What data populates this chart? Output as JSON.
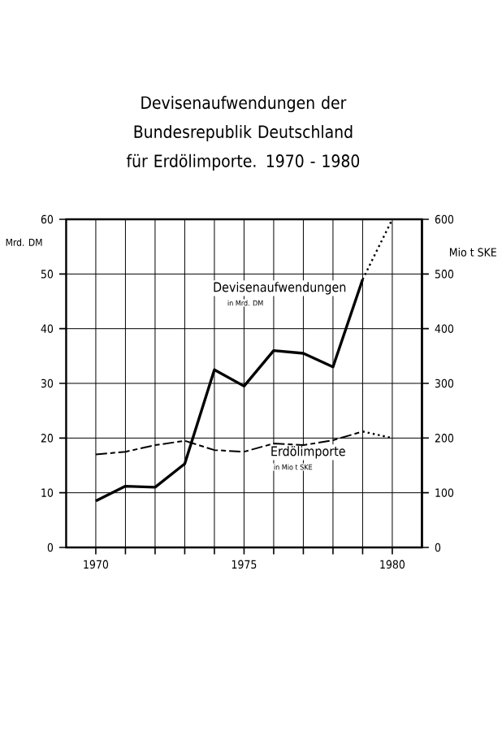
{
  "chart_data": {
    "type": "line",
    "title": "Devisenaufwendungen der Bundesrepublik Deutschland für Erdölimporte. 1970 - 1980",
    "ylabel": "Mrd. DM",
    "y2label": "Mio t SKE",
    "x": [
      1970,
      1971,
      1972,
      1973,
      1974,
      1975,
      1976,
      1977,
      1978,
      1979,
      1980
    ],
    "series": [
      {
        "name": "Devisenaufwendungen",
        "color": "#000000",
        "line_style": "solid",
        "values": [
          8.5,
          11.2,
          11,
          15.3,
          32.5,
          29.5,
          36,
          35.5,
          33,
          49,
          null
        ]
      },
      {
        "color": "#000000",
        "line_style": "dotted",
        "values": [
          null,
          null,
          null,
          null,
          null,
          null,
          null,
          null,
          null,
          49,
          60
        ]
      },
      {
        "name": "Erdölimporte",
        "color": "#000000",
        "line_style": "dashed",
        "axis": "y2",
        "values": [
          170,
          175,
          187,
          195,
          178,
          175,
          190,
          187,
          196,
          212,
          null
        ]
      },
      {
        "color": "#000000",
        "line_style": "dotted",
        "axis": "y2",
        "values": [
          null,
          null,
          null,
          null,
          null,
          null,
          null,
          null,
          null,
          212,
          200
        ]
      }
    ],
    "annotations": [
      "in Mrd. DM",
      "in Mio t SKE"
    ],
    "xlim": [
      1969,
      1981
    ],
    "xticks": [
      1970,
      {
        "value": 1971,
        "label": null
      },
      {
        "value": 1972,
        "label": null
      },
      {
        "value": 1973,
        "label": null
      },
      {
        "value": 1974,
        "label": null
      },
      1975,
      {
        "value": 1976,
        "label": null
      },
      {
        "value": 1977,
        "label": null
      },
      {
        "value": 1978,
        "label": null
      },
      {
        "value": 1979,
        "label": null
      },
      1980
    ],
    "ylim": [
      0,
      60
    ],
    "yticks": [
      0,
      10,
      20,
      30,
      40,
      50,
      60
    ],
    "y2lim": [
      0,
      600
    ],
    "y2ticks": [
      0,
      100,
      200,
      300,
      400,
      500,
      600
    ],
    "grid": true,
    "legend": false,
    "marker": "none"
  }
}
